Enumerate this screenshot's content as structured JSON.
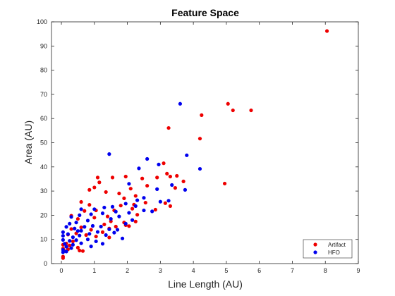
{
  "chart_data": {
    "type": "scatter",
    "title": "Feature Space",
    "xlabel": "Line Length (AU)",
    "ylabel": "Area (AU)",
    "xlim": [
      -0.3,
      9
    ],
    "ylim": [
      0,
      100
    ],
    "xticks": [
      "0",
      "1",
      "2",
      "3",
      "4",
      "5",
      "6",
      "7",
      "8",
      "9"
    ],
    "yticks": [
      "0",
      "10",
      "20",
      "30",
      "40",
      "50",
      "60",
      "70",
      "80",
      "90",
      "100"
    ],
    "grid": false,
    "legend_position": "bottom-right",
    "series": [
      {
        "name": "Artifact",
        "color": "#ee0000",
        "points": [
          [
            8.05,
            96.2
          ],
          [
            5.05,
            66.1
          ],
          [
            5.2,
            63.4
          ],
          [
            5.75,
            63.4
          ],
          [
            4.25,
            61.4
          ],
          [
            3.25,
            56.1
          ],
          [
            4.2,
            51.7
          ],
          [
            4.95,
            33.1
          ],
          [
            3.1,
            41.5
          ],
          [
            3.5,
            36.3
          ],
          [
            3.2,
            37.2
          ],
          [
            3.3,
            36.0
          ],
          [
            2.9,
            35.6
          ],
          [
            3.7,
            34.0
          ],
          [
            3.45,
            31.3
          ],
          [
            2.6,
            32.2
          ],
          [
            2.45,
            35.2
          ],
          [
            1.95,
            36.0
          ],
          [
            2.1,
            31.0
          ],
          [
            1.55,
            35.6
          ],
          [
            1.1,
            35.6
          ],
          [
            1.15,
            33.6
          ],
          [
            1.0,
            31.5
          ],
          [
            0.85,
            30.5
          ],
          [
            1.35,
            29.6
          ],
          [
            1.75,
            29.0
          ],
          [
            2.25,
            28.0
          ],
          [
            1.9,
            27.0
          ],
          [
            3.15,
            25.0
          ],
          [
            3.3,
            23.8
          ],
          [
            2.55,
            25.2
          ],
          [
            2.2,
            24.4
          ],
          [
            1.8,
            24.0
          ],
          [
            0.6,
            25.5
          ],
          [
            0.85,
            24.3
          ],
          [
            0.3,
            19.8
          ],
          [
            0.7,
            21.8
          ],
          [
            1.05,
            22.0
          ],
          [
            1.6,
            22.0
          ],
          [
            2.15,
            22.7
          ],
          [
            2.3,
            20.2
          ],
          [
            1.4,
            19.5
          ],
          [
            1.0,
            19.0
          ],
          [
            0.5,
            18.5
          ],
          [
            1.5,
            17.5
          ],
          [
            1.9,
            17.0
          ],
          [
            2.25,
            17.4
          ],
          [
            2.05,
            15.5
          ],
          [
            1.95,
            15.9
          ],
          [
            1.65,
            15.3
          ],
          [
            1.45,
            14.5
          ],
          [
            1.25,
            13.0
          ],
          [
            0.9,
            14.0
          ],
          [
            0.6,
            15.0
          ],
          [
            0.3,
            14.3
          ],
          [
            0.2,
            12.0
          ],
          [
            0.45,
            12.5
          ],
          [
            0.75,
            11.8
          ],
          [
            1.05,
            11.2
          ],
          [
            1.45,
            10.8
          ],
          [
            0.35,
            9.2
          ],
          [
            0.15,
            8.3
          ],
          [
            0.05,
            7.8
          ],
          [
            0.05,
            6.2
          ],
          [
            0.1,
            5.2
          ],
          [
            0.2,
            5.9
          ],
          [
            0.5,
            6.6
          ],
          [
            0.55,
            5.4
          ],
          [
            0.65,
            5.2
          ],
          [
            0.05,
            2.9
          ],
          [
            0.05,
            2.3
          ],
          [
            0.25,
            7.5
          ],
          [
            1.3,
            16.2
          ],
          [
            2.85,
            22.3
          ]
        ]
      },
      {
        "name": "HFO",
        "color": "#0000ee",
        "points": [
          [
            3.6,
            66.1
          ],
          [
            1.45,
            45.3
          ],
          [
            3.8,
            44.8
          ],
          [
            2.6,
            43.3
          ],
          [
            2.35,
            39.4
          ],
          [
            4.2,
            39.2
          ],
          [
            2.95,
            41.0
          ],
          [
            3.35,
            32.5
          ],
          [
            3.75,
            30.5
          ],
          [
            2.05,
            33.0
          ],
          [
            2.9,
            30.8
          ],
          [
            2.5,
            27.2
          ],
          [
            3.0,
            25.6
          ],
          [
            3.25,
            26.0
          ],
          [
            2.3,
            26.2
          ],
          [
            1.95,
            24.8
          ],
          [
            1.55,
            23.5
          ],
          [
            1.3,
            23.2
          ],
          [
            1.0,
            22.5
          ],
          [
            0.6,
            22.5
          ],
          [
            0.3,
            19.3
          ],
          [
            0.55,
            20.0
          ],
          [
            0.9,
            20.4
          ],
          [
            1.25,
            20.8
          ],
          [
            1.65,
            21.5
          ],
          [
            2.05,
            21.0
          ],
          [
            2.25,
            23.8
          ],
          [
            2.5,
            22.0
          ],
          [
            2.75,
            21.6
          ],
          [
            1.5,
            18.5
          ],
          [
            1.75,
            19.5
          ],
          [
            2.15,
            18.0
          ],
          [
            0.8,
            17.8
          ],
          [
            0.45,
            17.0
          ],
          [
            0.25,
            16.5
          ],
          [
            0.15,
            15.2
          ],
          [
            0.4,
            14.5
          ],
          [
            0.7,
            15.2
          ],
          [
            0.95,
            15.6
          ],
          [
            1.2,
            15.3
          ],
          [
            1.45,
            14.2
          ],
          [
            1.7,
            14.0
          ],
          [
            1.95,
            16.5
          ],
          [
            0.6,
            13.6
          ],
          [
            0.85,
            12.3
          ],
          [
            1.1,
            13.1
          ],
          [
            1.35,
            11.8
          ],
          [
            1.6,
            12.8
          ],
          [
            1.85,
            10.4
          ],
          [
            0.05,
            13.0
          ],
          [
            0.05,
            11.5
          ],
          [
            0.2,
            12.2
          ],
          [
            0.35,
            10.9
          ],
          [
            0.55,
            11.6
          ],
          [
            0.8,
            10.0
          ],
          [
            1.05,
            9.2
          ],
          [
            1.25,
            8.2
          ],
          [
            0.25,
            9.4
          ],
          [
            0.05,
            9.8
          ],
          [
            0.1,
            8.2
          ],
          [
            0.15,
            7.0
          ],
          [
            0.35,
            7.8
          ],
          [
            0.45,
            9.7
          ],
          [
            0.6,
            8.4
          ],
          [
            0.05,
            5.7
          ],
          [
            0.15,
            5.0
          ],
          [
            0.05,
            4.7
          ],
          [
            0.3,
            6.4
          ],
          [
            0.5,
            13.5
          ],
          [
            0.9,
            7.1
          ]
        ]
      }
    ]
  }
}
